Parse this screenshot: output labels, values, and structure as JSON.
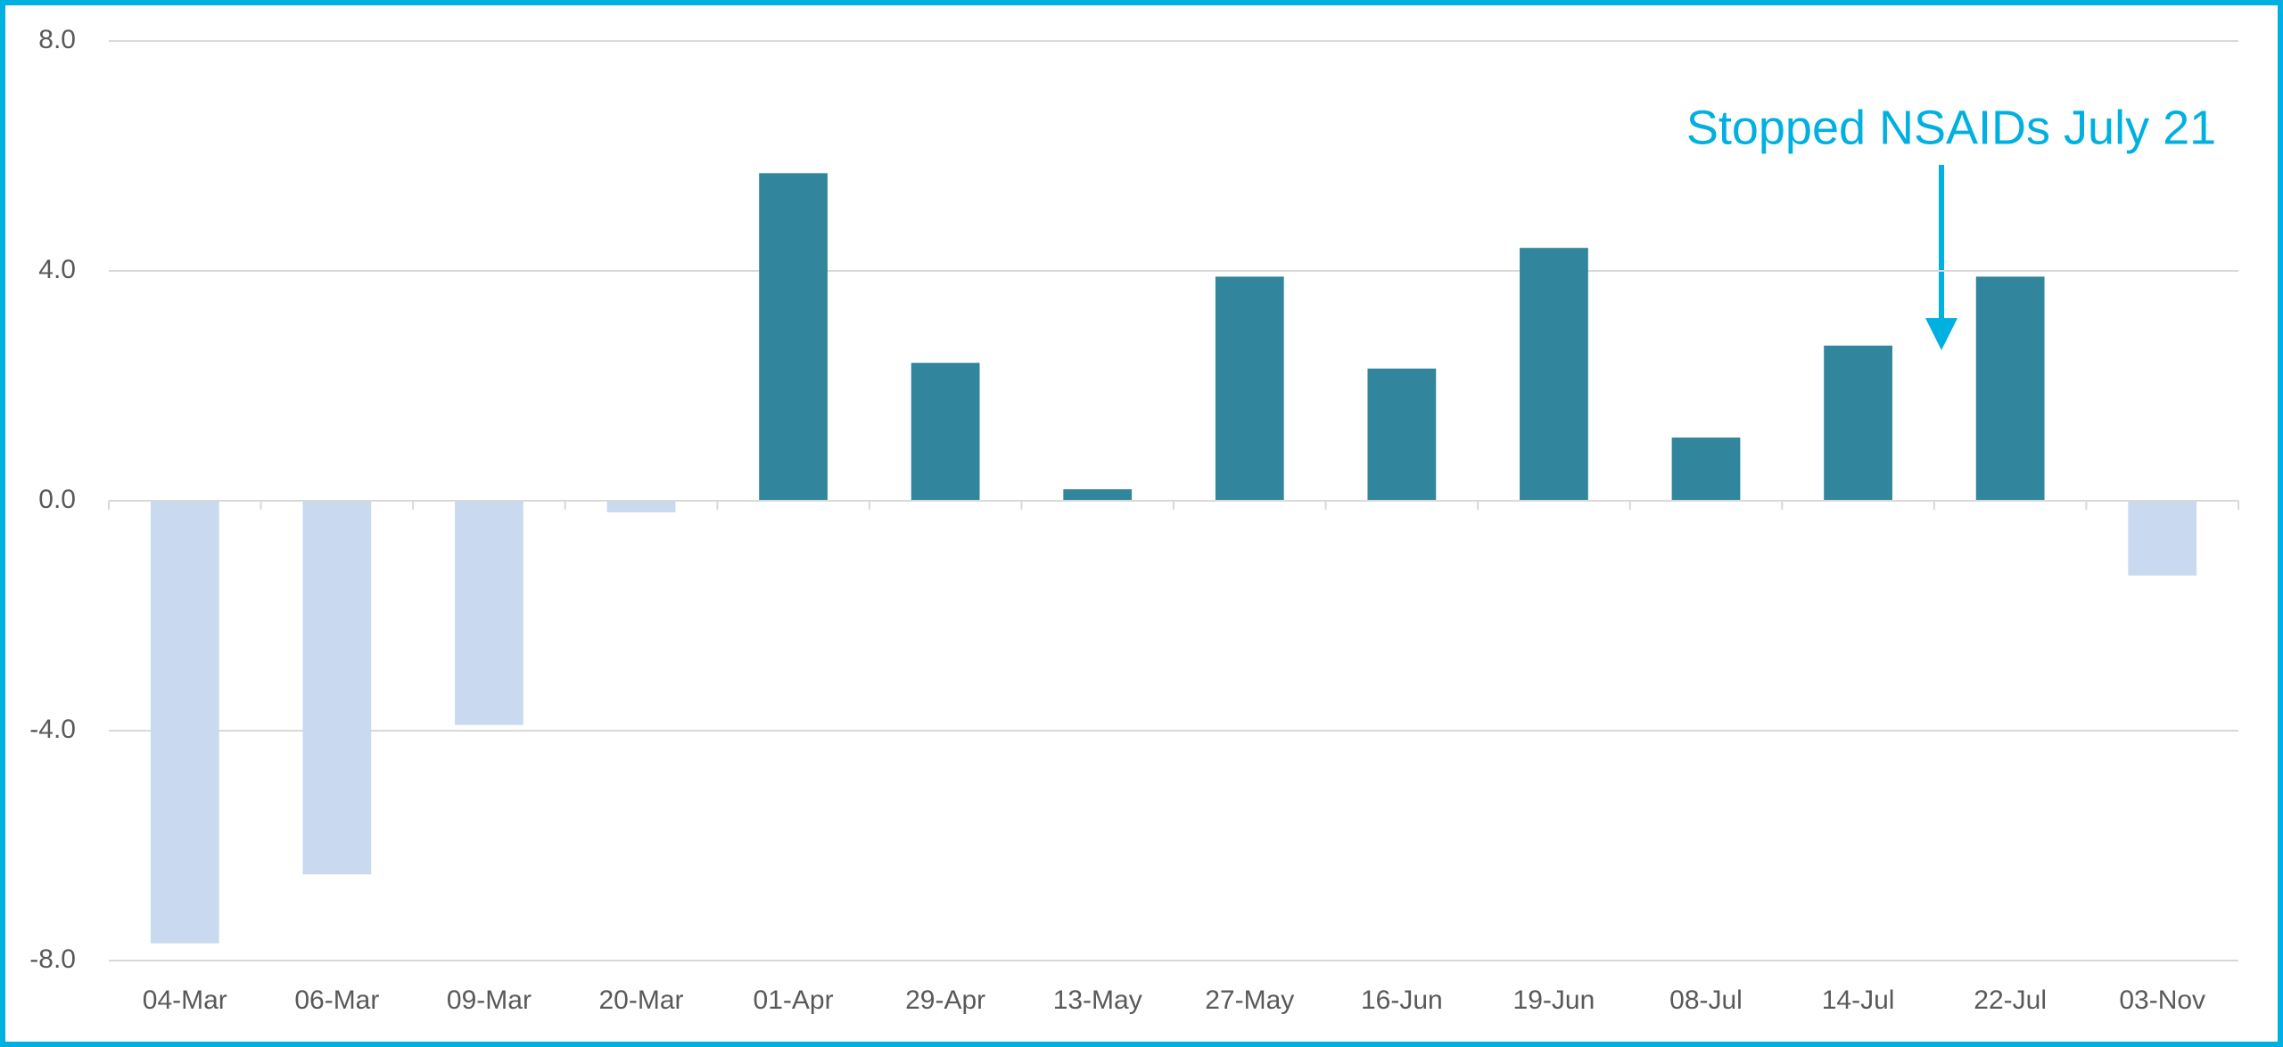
{
  "chart_data": {
    "type": "bar",
    "categories": [
      "04-Mar",
      "06-Mar",
      "09-Mar",
      "20-Mar",
      "01-Apr",
      "29-Apr",
      "13-May",
      "27-May",
      "16-Jun",
      "19-Jun",
      "08-Jul",
      "14-Jul",
      "22-Jul",
      "03-Nov"
    ],
    "values": [
      -7.7,
      -6.5,
      -3.9,
      -0.2,
      5.7,
      2.4,
      0.2,
      3.9,
      2.3,
      4.4,
      1.1,
      2.7,
      3.9,
      -1.3
    ],
    "colors": [
      "#c9d9f0",
      "#c9d9f0",
      "#c9d9f0",
      "#c9d9f0",
      "#31859c",
      "#31859c",
      "#31859c",
      "#31859c",
      "#31859c",
      "#31859c",
      "#31859c",
      "#31859c",
      "#31859c",
      "#c9d9f0"
    ],
    "ylim": [
      -8,
      8
    ],
    "yticks": [
      {
        "value": -8,
        "label": "-8.0"
      },
      {
        "value": -4,
        "label": "-4.0"
      },
      {
        "value": 0,
        "label": "0.0"
      },
      {
        "value": 4,
        "label": "4.0"
      },
      {
        "value": 8,
        "label": "8.0"
      }
    ],
    "grid": true,
    "annotation": "Stopped NSAIDs July 21"
  }
}
